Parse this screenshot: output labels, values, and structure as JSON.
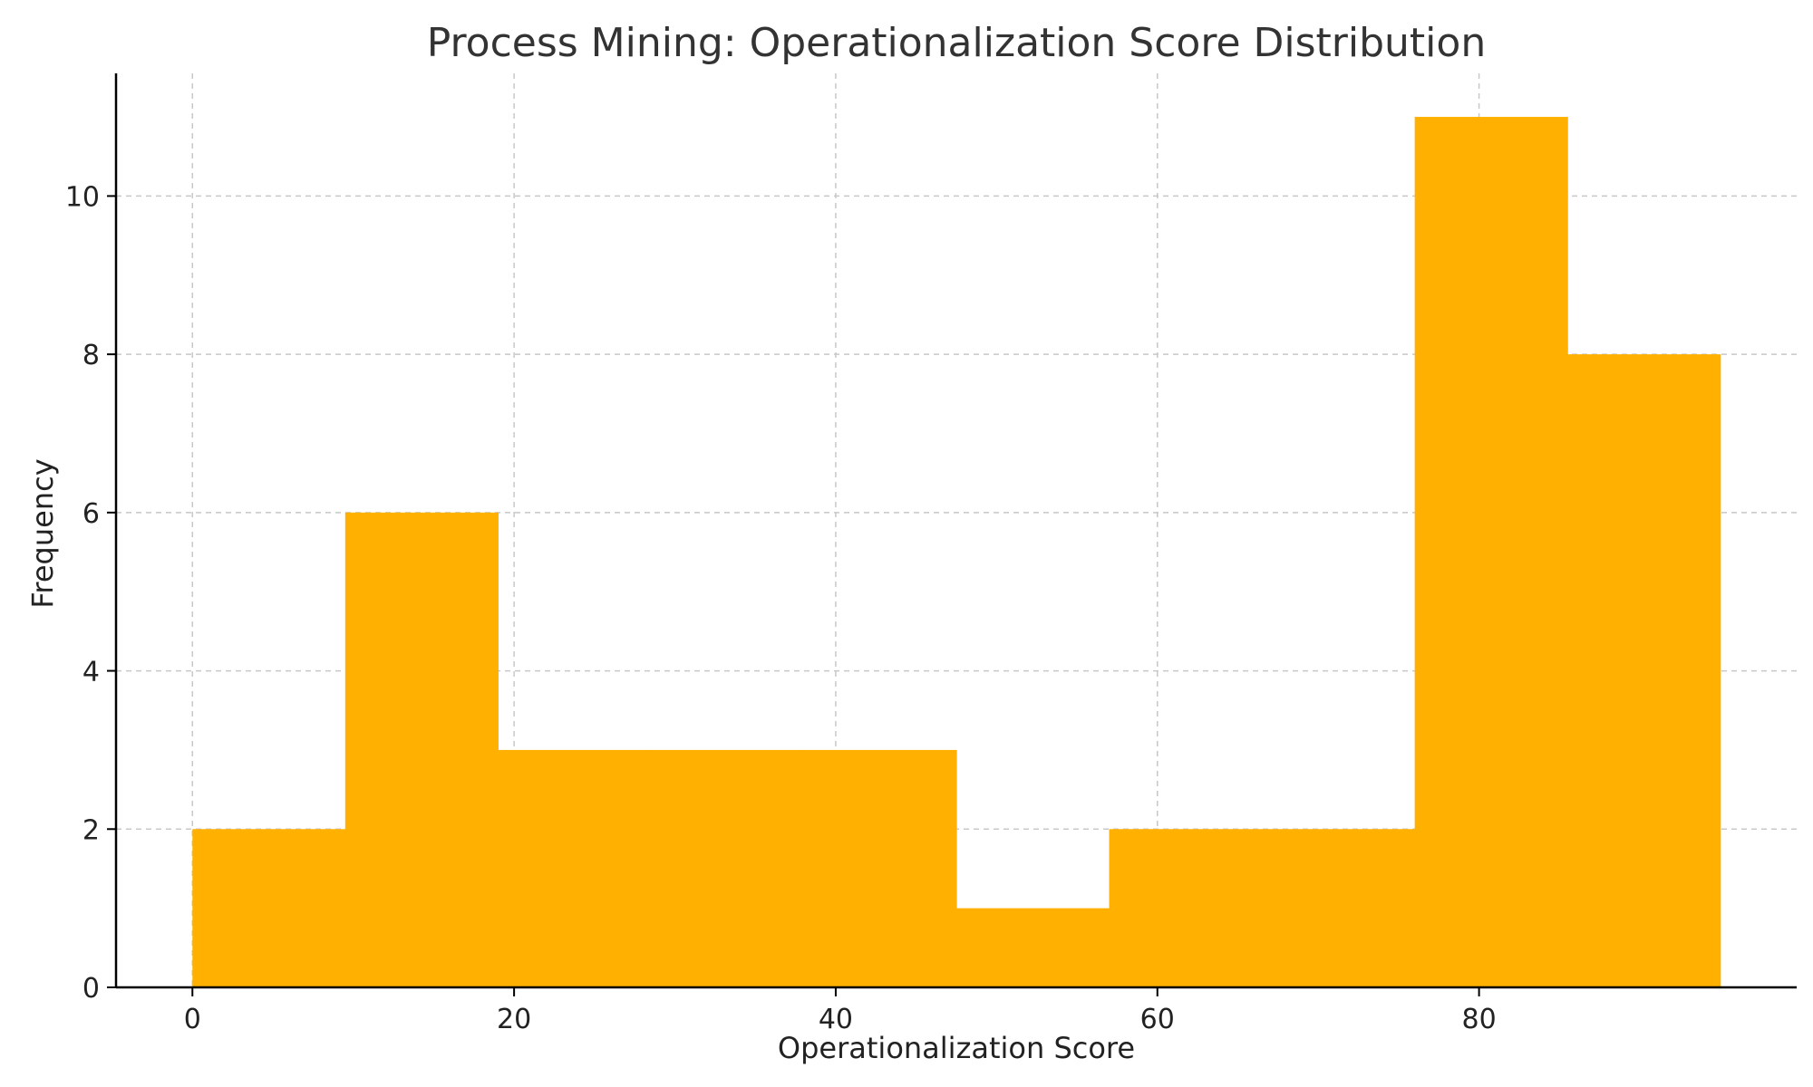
{
  "chart_data": {
    "type": "bar",
    "subtype": "histogram",
    "title": "Process Mining: Operationalization Score Distribution",
    "xlabel": "Operationalization Score",
    "ylabel": "Frequency",
    "bin_edges": [
      0,
      9.5,
      19,
      28.5,
      38,
      47.5,
      57,
      66.5,
      76,
      85.5,
      95
    ],
    "values": [
      2,
      6,
      3,
      3,
      3,
      1,
      2,
      2,
      11,
      8
    ],
    "xlim": [
      -4.75,
      99.75
    ],
    "ylim": [
      0,
      11.55
    ],
    "xticks": [
      0,
      20,
      40,
      60,
      80
    ],
    "yticks": [
      0,
      2,
      4,
      6,
      8,
      10
    ],
    "bar_color": "#FFB000",
    "grid": true
  }
}
